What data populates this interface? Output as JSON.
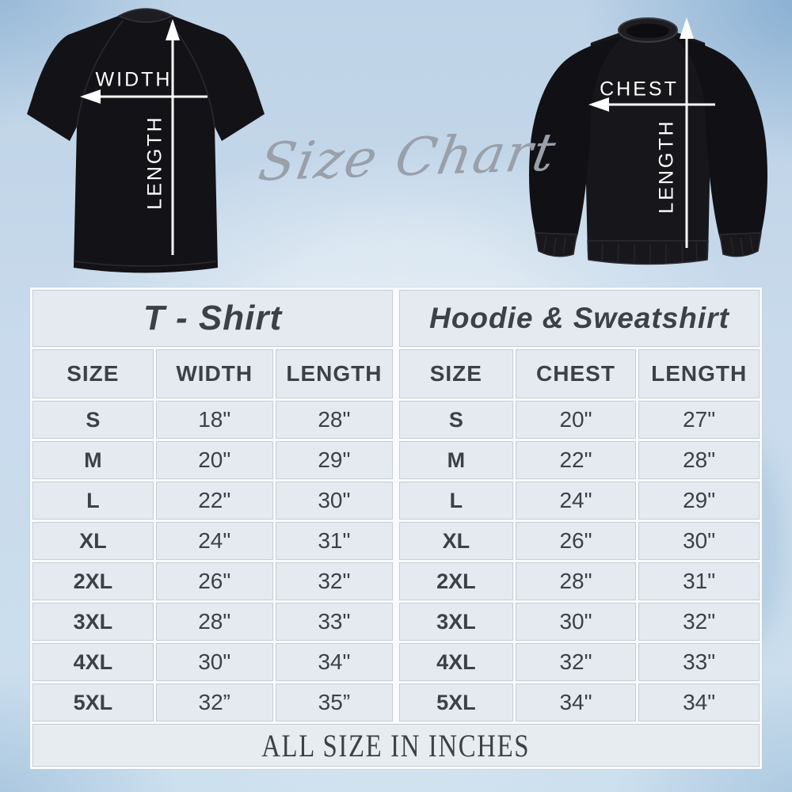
{
  "script_title": "Size Chart",
  "diagrams": {
    "tshirt": {
      "h_label": "WIDTH",
      "v_label": "LENGTH"
    },
    "sweatshirt": {
      "h_label": "CHEST",
      "v_label": "LENGTH"
    }
  },
  "tables": [
    {
      "title": "T - Shirt",
      "columns": [
        "SIZE",
        "WIDTH",
        "LENGTH"
      ],
      "rows": [
        [
          "S",
          "18\"",
          "28\""
        ],
        [
          "M",
          "20\"",
          "29\""
        ],
        [
          "L",
          "22\"",
          "30\""
        ],
        [
          "XL",
          "24\"",
          "31\""
        ],
        [
          "2XL",
          "26\"",
          "32\""
        ],
        [
          "3XL",
          "28\"",
          "33\""
        ],
        [
          "4XL",
          "30\"",
          "34\""
        ],
        [
          "5XL",
          "32”",
          "35”"
        ]
      ]
    },
    {
      "title": "Hoodie & Sweatshirt",
      "columns": [
        "SIZE",
        "CHEST",
        "LENGTH"
      ],
      "rows": [
        [
          "S",
          "20\"",
          "27\""
        ],
        [
          "M",
          "22\"",
          "28\""
        ],
        [
          "L",
          "24\"",
          "29\""
        ],
        [
          "XL",
          "26\"",
          "30\""
        ],
        [
          "2XL",
          "28\"",
          "31\""
        ],
        [
          "3XL",
          "30\"",
          "32\""
        ],
        [
          "4XL",
          "32\"",
          "33\""
        ],
        [
          "5XL",
          "34\"",
          "34\""
        ]
      ]
    }
  ],
  "footer_note": "ALL SIZE IN INCHES",
  "colors": {
    "garment_black": "#131317",
    "arrow_white": "#ffffff",
    "script_gray": "#99a0a9",
    "cell_bg": "#e4eaef",
    "grid_line": "#c6ced6",
    "gap_white": "#f8fafc",
    "text_dark": "#3c4147",
    "bg_blue": "#c8daeb"
  }
}
